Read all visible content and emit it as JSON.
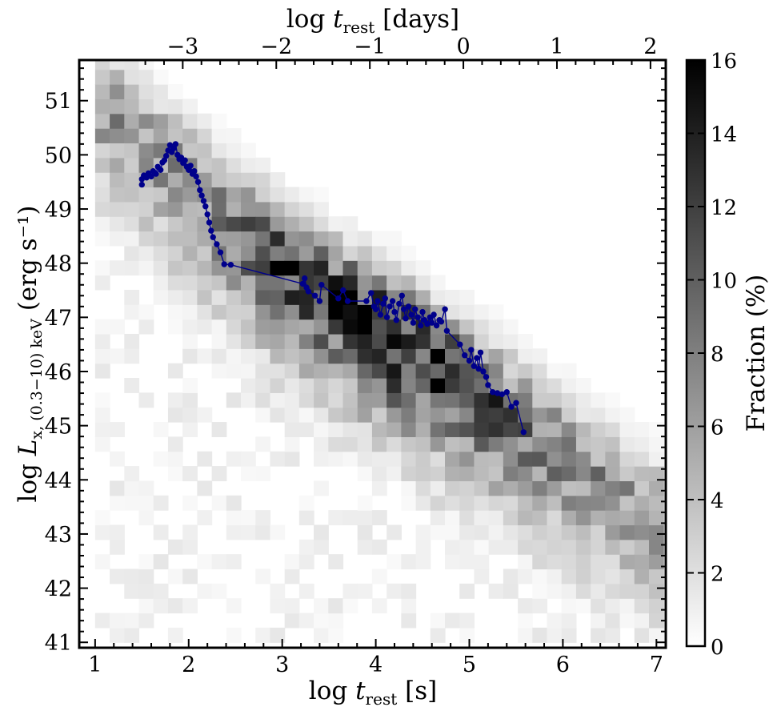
{
  "chart_data": {
    "type": "heatmap",
    "xlabel": {
      "prefix": "log ",
      "var": "t",
      "sub": "rest",
      "unit": " [s]"
    },
    "x2label": {
      "prefix": "log ",
      "var": "t",
      "sub": "rest",
      "unit": " [days]"
    },
    "ylabel": {
      "prefix": "log ",
      "var": "L",
      "sub": "x, (0.3−10) keV",
      "unit": " (erg s⁻¹)"
    },
    "colorbar_label": "Fraction (%)",
    "xlim": [
      0.83,
      7.1
    ],
    "ylim": [
      40.9,
      51.75
    ],
    "x_ticks": [
      "1",
      "2",
      "3",
      "4",
      "5",
      "6",
      "7"
    ],
    "y_ticks": [
      "41",
      "42",
      "43",
      "44",
      "45",
      "46",
      "47",
      "48",
      "49",
      "50",
      "51"
    ],
    "x2_ticks": [
      "−3",
      "−2",
      "−1",
      "0",
      "1",
      "2"
    ],
    "colorbar_ticks": [
      "0",
      "2",
      "4",
      "6",
      "8",
      "10",
      "12",
      "14",
      "16"
    ],
    "colorbar_range": [
      0,
      16
    ],
    "colorbar_colors": [
      "#ffffff",
      "#000000"
    ],
    "bin_width_x": 0.1558,
    "bin_width_y": 0.2712,
    "ridge": [
      [
        1.0,
        51.1
      ],
      [
        2.0,
        49.55
      ],
      [
        3.0,
        47.95
      ],
      [
        4.0,
        46.95
      ],
      [
        5.0,
        45.75
      ],
      [
        6.0,
        44.5
      ],
      [
        7.0,
        43.3
      ]
    ],
    "lightcurve": {
      "color": "#00008b",
      "points": [
        [
          1.5,
          49.45
        ],
        [
          1.5,
          49.55
        ],
        [
          1.52,
          49.62
        ],
        [
          1.55,
          49.58
        ],
        [
          1.57,
          49.66
        ],
        [
          1.6,
          49.6
        ],
        [
          1.62,
          49.7
        ],
        [
          1.65,
          49.65
        ],
        [
          1.67,
          49.78
        ],
        [
          1.7,
          49.72
        ],
        [
          1.72,
          49.86
        ],
        [
          1.74,
          49.9
        ],
        [
          1.76,
          49.98
        ],
        [
          1.78,
          50.08
        ],
        [
          1.8,
          50.18
        ],
        [
          1.82,
          50.05
        ],
        [
          1.84,
          50.12
        ],
        [
          1.86,
          50.2
        ],
        [
          1.88,
          50.0
        ],
        [
          1.9,
          49.92
        ],
        [
          1.92,
          49.95
        ],
        [
          1.94,
          49.85
        ],
        [
          1.96,
          49.9
        ],
        [
          1.98,
          49.78
        ],
        [
          2.0,
          49.72
        ],
        [
          2.02,
          49.8
        ],
        [
          2.04,
          49.65
        ],
        [
          2.06,
          49.7
        ],
        [
          2.08,
          49.6
        ],
        [
          2.1,
          49.5
        ],
        [
          2.12,
          49.35
        ],
        [
          2.14,
          49.25
        ],
        [
          2.16,
          49.15
        ],
        [
          2.18,
          49.05
        ],
        [
          2.2,
          48.9
        ],
        [
          2.22,
          48.75
        ],
        [
          2.24,
          48.6
        ],
        [
          2.26,
          48.48
        ],
        [
          2.3,
          48.35
        ],
        [
          2.34,
          48.2
        ],
        [
          2.38,
          47.98
        ],
        [
          2.45,
          47.97
        ],
        [
          3.22,
          47.62
        ],
        [
          3.24,
          47.72
        ],
        [
          3.26,
          47.55
        ],
        [
          3.28,
          47.48
        ],
        [
          3.35,
          47.4
        ],
        [
          3.4,
          47.3
        ],
        [
          3.42,
          47.6
        ],
        [
          3.6,
          47.35
        ],
        [
          3.65,
          47.5
        ],
        [
          3.7,
          47.3
        ],
        [
          3.9,
          47.3
        ],
        [
          3.95,
          47.45
        ],
        [
          3.98,
          47.2
        ],
        [
          4.0,
          47.15
        ],
        [
          4.02,
          47.3
        ],
        [
          4.05,
          47.05
        ],
        [
          4.08,
          47.25
        ],
        [
          4.1,
          47.35
        ],
        [
          4.12,
          47.0
        ],
        [
          4.15,
          47.2
        ],
        [
          4.18,
          47.3
        ],
        [
          4.2,
          47.1
        ],
        [
          4.22,
          46.95
        ],
        [
          4.25,
          47.25
        ],
        [
          4.28,
          47.4
        ],
        [
          4.3,
          47.15
        ],
        [
          4.32,
          46.98
        ],
        [
          4.35,
          47.2
        ],
        [
          4.38,
          47.05
        ],
        [
          4.4,
          46.9
        ],
        [
          4.42,
          47.15
        ],
        [
          4.45,
          47.0
        ],
        [
          4.48,
          46.85
        ],
        [
          4.5,
          47.1
        ],
        [
          4.52,
          46.95
        ],
        [
          4.55,
          46.88
        ],
        [
          4.58,
          47.0
        ],
        [
          4.6,
          46.9
        ],
        [
          4.62,
          47.05
        ],
        [
          4.65,
          46.85
        ],
        [
          4.68,
          46.95
        ],
        [
          4.7,
          46.92
        ],
        [
          4.74,
          47.15
        ],
        [
          4.76,
          46.75
        ],
        [
          4.9,
          46.5
        ],
        [
          4.95,
          46.3
        ],
        [
          5.0,
          46.2
        ],
        [
          5.02,
          46.4
        ],
        [
          5.05,
          46.1
        ],
        [
          5.08,
          46.25
        ],
        [
          5.1,
          46.05
        ],
        [
          5.12,
          46.35
        ],
        [
          5.15,
          46.0
        ],
        [
          5.18,
          45.9
        ],
        [
          5.2,
          45.75
        ],
        [
          5.25,
          45.62
        ],
        [
          5.3,
          45.6
        ],
        [
          5.35,
          45.58
        ],
        [
          5.4,
          45.62
        ],
        [
          5.45,
          45.35
        ],
        [
          5.5,
          45.42
        ],
        [
          5.58,
          44.88
        ]
      ]
    }
  }
}
